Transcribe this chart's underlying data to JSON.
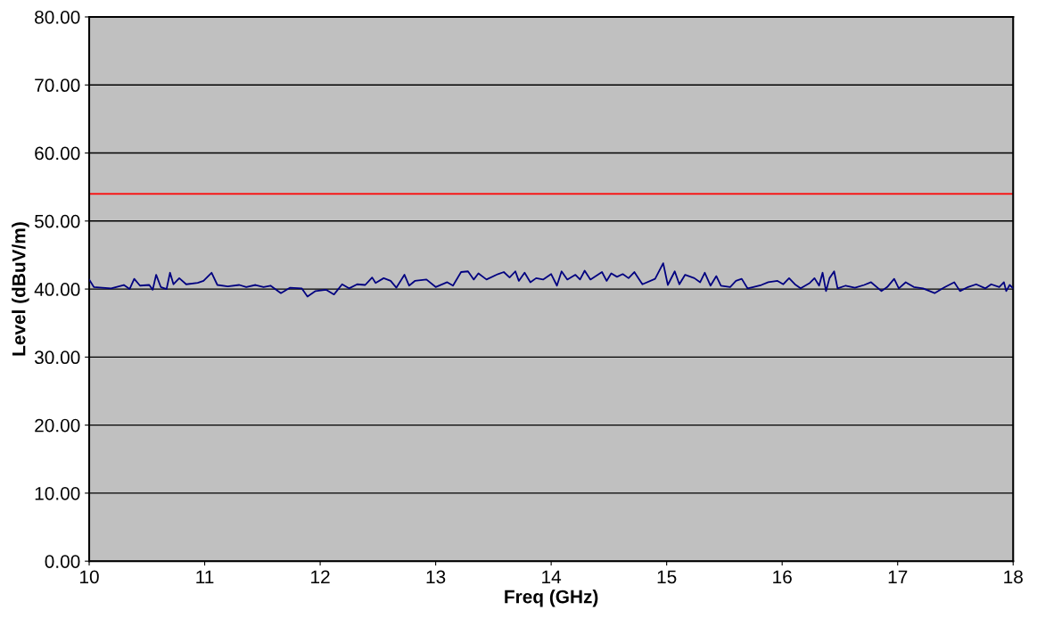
{
  "chart_data": {
    "type": "line",
    "xlabel": "Freq (GHz)",
    "ylabel": "Level (dBuV/m)",
    "xlim": [
      10,
      18
    ],
    "xticks": [
      10,
      11,
      12,
      13,
      14,
      15,
      16,
      17,
      18
    ],
    "ylim": [
      0,
      80
    ],
    "yticks": [
      {
        "value": 0,
        "label": "0.00"
      },
      {
        "value": 10,
        "label": "10.00"
      },
      {
        "value": 20,
        "label": "20.00"
      },
      {
        "value": 30,
        "label": "30.00"
      },
      {
        "value": 40,
        "label": "40.00"
      },
      {
        "value": 50,
        "label": "50.00"
      },
      {
        "value": 60,
        "label": "60.00"
      },
      {
        "value": 70,
        "label": "70.00"
      },
      {
        "value": 80,
        "label": "80.00"
      }
    ],
    "grid": "y",
    "marker": "none",
    "line_style": "solid",
    "ref_lines": [
      {
        "axis": "y",
        "value": 54,
        "color": "#ff0000",
        "line_style": "solid"
      }
    ],
    "series": [
      {
        "color": "#000080",
        "x": [
          10.0,
          10.04,
          10.19,
          10.3,
          10.35,
          10.39,
          10.44,
          10.52,
          10.55,
          10.58,
          10.62,
          10.67,
          10.7,
          10.73,
          10.78,
          10.84,
          10.94,
          10.99,
          11.06,
          11.11,
          11.2,
          11.3,
          11.36,
          11.44,
          11.51,
          11.57,
          11.66,
          11.74,
          11.84,
          11.89,
          11.96,
          12.05,
          12.12,
          12.19,
          12.25,
          12.32,
          12.39,
          12.45,
          12.48,
          12.55,
          12.61,
          12.66,
          12.73,
          12.77,
          12.82,
          12.92,
          13.0,
          13.1,
          13.15,
          13.22,
          13.28,
          13.33,
          13.37,
          13.44,
          13.54,
          13.59,
          13.64,
          13.69,
          13.72,
          13.77,
          13.82,
          13.87,
          13.93,
          14.0,
          14.05,
          14.09,
          14.14,
          14.21,
          14.25,
          14.29,
          14.34,
          14.44,
          14.48,
          14.52,
          14.57,
          14.62,
          14.67,
          14.72,
          14.79,
          14.9,
          14.97,
          15.01,
          15.07,
          15.11,
          15.16,
          15.24,
          15.29,
          15.33,
          15.38,
          15.43,
          15.47,
          15.55,
          15.6,
          15.65,
          15.7,
          15.75,
          15.82,
          15.88,
          15.96,
          16.01,
          16.06,
          16.11,
          16.16,
          16.24,
          16.28,
          16.32,
          16.35,
          16.38,
          16.41,
          16.45,
          16.48,
          16.55,
          16.63,
          16.71,
          16.77,
          16.86,
          16.91,
          16.97,
          17.01,
          17.07,
          17.14,
          17.22,
          17.32,
          17.4,
          17.49,
          17.54,
          17.61,
          17.68,
          17.76,
          17.81,
          17.88,
          17.92,
          17.94,
          17.97,
          18.0
        ],
        "values": [
          41.4,
          40.3,
          40.1,
          40.6,
          40.0,
          41.5,
          40.5,
          40.6,
          39.9,
          42.1,
          40.3,
          40.0,
          42.4,
          40.7,
          41.6,
          40.7,
          40.9,
          41.2,
          42.4,
          40.6,
          40.4,
          40.6,
          40.3,
          40.6,
          40.3,
          40.5,
          39.4,
          40.2,
          40.1,
          38.9,
          39.7,
          39.9,
          39.2,
          40.7,
          40.1,
          40.7,
          40.6,
          41.7,
          40.9,
          41.6,
          41.2,
          40.2,
          42.1,
          40.5,
          41.2,
          41.4,
          40.3,
          41.0,
          40.5,
          42.5,
          42.6,
          41.4,
          42.3,
          41.4,
          42.2,
          42.5,
          41.7,
          42.6,
          41.2,
          42.4,
          41.0,
          41.6,
          41.4,
          42.2,
          40.5,
          42.6,
          41.4,
          42.1,
          41.4,
          42.7,
          41.4,
          42.5,
          41.2,
          42.3,
          41.8,
          42.2,
          41.6,
          42.5,
          40.7,
          41.5,
          43.8,
          40.6,
          42.6,
          40.7,
          42.1,
          41.6,
          41.0,
          42.4,
          40.5,
          41.9,
          40.5,
          40.3,
          41.2,
          41.5,
          40.1,
          40.3,
          40.6,
          41.0,
          41.2,
          40.7,
          41.6,
          40.7,
          40.1,
          40.9,
          41.6,
          40.5,
          42.4,
          39.7,
          41.6,
          42.6,
          40.1,
          40.5,
          40.2,
          40.6,
          41.0,
          39.7,
          40.3,
          41.5,
          40.1,
          41.0,
          40.3,
          40.1,
          39.4,
          40.2,
          41.0,
          39.7,
          40.3,
          40.7,
          40.1,
          40.7,
          40.3,
          41.0,
          39.7,
          40.6,
          40.1
        ]
      }
    ]
  }
}
